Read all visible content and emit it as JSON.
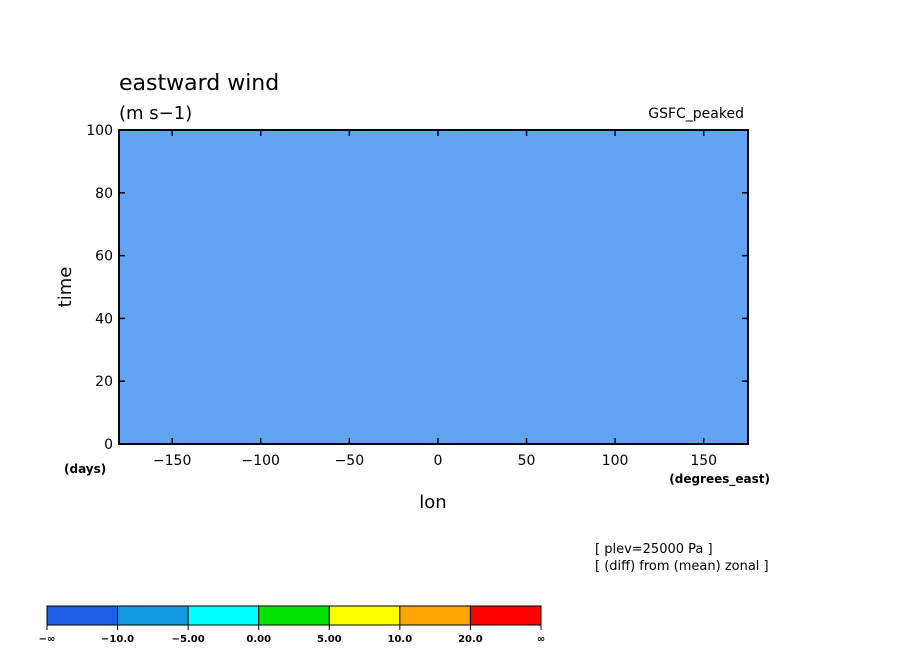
{
  "chart_data": {
    "type": "heatmap",
    "title": "eastward wind",
    "units": "(m s−1)",
    "tag": "GSFC_peaked",
    "xlabel": "lon",
    "xunits": "(degrees_east)",
    "ylabel": "time",
    "yunits": "(days)",
    "xlim": [
      -180,
      175
    ],
    "ylim": [
      0,
      100
    ],
    "xticks": [
      -150,
      -100,
      -50,
      0,
      50,
      100,
      150
    ],
    "yticks": [
      0,
      20,
      40,
      60,
      80,
      100
    ],
    "notes": [
      "[ plev=25000 Pa ]",
      "[ (diff) from (mean) zonal ]"
    ],
    "colorbar": {
      "bins": [
        {
          "color": "#1f5fe6"
        },
        {
          "color": "#119ae0"
        },
        {
          "color": "#00ffff"
        },
        {
          "color": "#00e400"
        },
        {
          "color": "#ffff00"
        },
        {
          "color": "#ffa500"
        },
        {
          "color": "#ff0000"
        }
      ],
      "labels": [
        "−∞",
        "−10.0",
        "−5.00",
        "0.00",
        "5.00",
        "10.0",
        "20.0",
        "∞"
      ]
    }
  }
}
